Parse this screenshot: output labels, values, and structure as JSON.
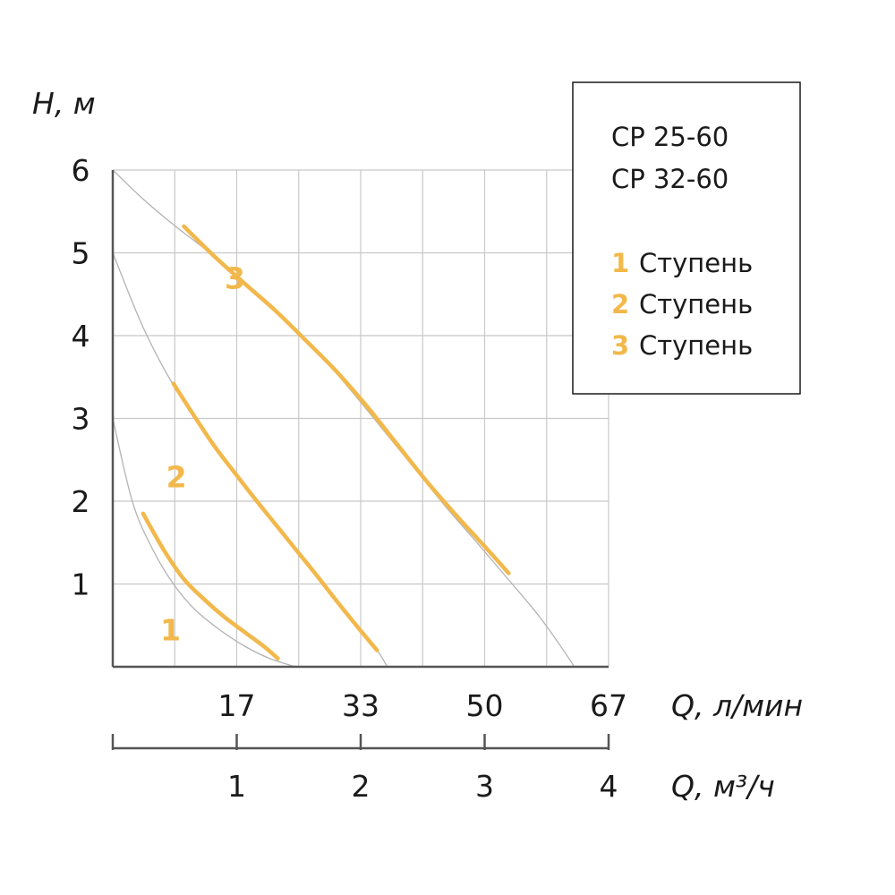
{
  "chart_data": {
    "type": "line",
    "title": "",
    "xlabel": "Q, л/мин",
    "ylabel": "H, м",
    "x2label": "Q, м³/ч",
    "xlim": [
      0,
      67
    ],
    "ylim": [
      0,
      6
    ],
    "x_ticks": [
      "17",
      "33",
      "50",
      "67"
    ],
    "x_tick_values": [
      16.75,
      33.5,
      50.25,
      67
    ],
    "x2_ticks": [
      "1",
      "2",
      "3",
      "4"
    ],
    "x2_tick_values": [
      16.75,
      33.5,
      50.25,
      67
    ],
    "y_ticks": [
      "1",
      "2",
      "3",
      "4",
      "5",
      "6"
    ],
    "y_tick_values": [
      1,
      2,
      3,
      4,
      5,
      6
    ],
    "grid": true,
    "legend": {
      "placement": "top-right",
      "models": [
        "CP 25-60",
        "CP 32-60"
      ],
      "suffix": "Ступень",
      "entries": [
        "1",
        "2",
        "3"
      ]
    },
    "accent_color": "#f2b84b",
    "reference_color": "#b3b3b3",
    "series": [
      {
        "name": "1",
        "full_curve": {
          "x": [
            0,
            2.7,
            5.5,
            8.2,
            11,
            14.4,
            17.8,
            21.2,
            24.7
          ],
          "y": [
            3,
            1.98,
            1.4,
            1,
            0.7,
            0.45,
            0.25,
            0.1,
            0
          ]
        },
        "x": [
          4.1,
          6.9,
          9.6,
          12.4,
          15.1,
          17.8,
          20.5,
          22.3
        ],
        "y": [
          1.85,
          1.41,
          1.06,
          0.81,
          0.6,
          0.42,
          0.24,
          0.1
        ]
      },
      {
        "name": "2",
        "full_curve": {
          "x": [
            0,
            4.1,
            8.2,
            12.4,
            16.5,
            20.6,
            24.7,
            28.9,
            33,
            35.7,
            37.1
          ],
          "y": [
            5,
            4.1,
            3.4,
            2.85,
            2.35,
            1.9,
            1.42,
            0.95,
            0.48,
            0.2,
            0
          ]
        },
        "x": [
          8.2,
          11,
          13.7,
          16.5,
          19.2,
          22,
          24.7,
          27.5,
          30.2,
          33,
          35.7
        ],
        "y": [
          3.42,
          3.03,
          2.67,
          2.34,
          2.03,
          1.72,
          1.42,
          1.11,
          0.8,
          0.49,
          0.2
        ]
      },
      {
        "name": "3",
        "full_curve": {
          "x": [
            0,
            4.1,
            8.2,
            12.4,
            16.5,
            20.6,
            24.7,
            28.9,
            33,
            37.1,
            41.2,
            45.3,
            49.4,
            53.5,
            57.7,
            61.8,
            62.2
          ],
          "y": [
            6,
            5.65,
            5.34,
            5.05,
            4.75,
            4.42,
            4.07,
            3.68,
            3.25,
            2.8,
            2.35,
            1.9,
            1.48,
            1.05,
            0.6,
            0.08,
            0
          ]
        },
        "x": [
          9.6,
          13.7,
          17.8,
          22,
          26.1,
          30.2,
          34.3,
          38.4,
          42.6,
          46.7,
          50.8,
          53.5
        ],
        "y": [
          5.32,
          4.96,
          4.63,
          4.3,
          3.94,
          3.57,
          3.15,
          2.69,
          2.22,
          1.8,
          1.4,
          1.13
        ]
      }
    ],
    "curve_labels": [
      {
        "text": "1",
        "x": 7.8,
        "y": 0.45
      },
      {
        "text": "2",
        "x": 8.6,
        "y": 2.3
      },
      {
        "text": "3",
        "x": 16.5,
        "y": 4.7
      }
    ]
  }
}
